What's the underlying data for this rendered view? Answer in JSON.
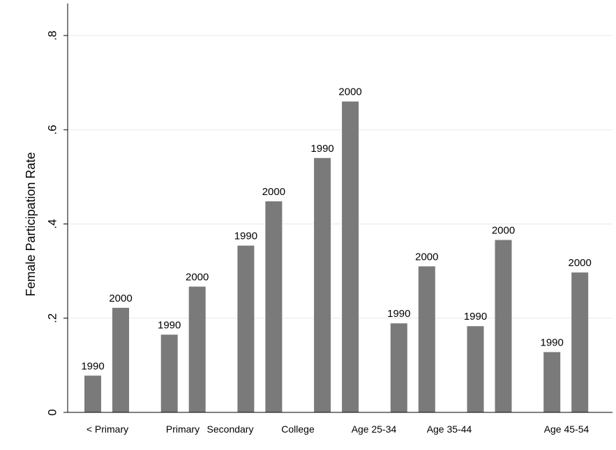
{
  "chart_data": {
    "type": "bar",
    "ylabel": "Female Participation Rate",
    "ylim": [
      0,
      0.8
    ],
    "yticks": [
      {
        "value": 0,
        "label": "0"
      },
      {
        "value": 0.2,
        "label": ".2"
      },
      {
        "value": 0.4,
        "label": ".4"
      },
      {
        "value": 0.6,
        "label": ".6"
      },
      {
        "value": 0.8,
        "label": ".8"
      }
    ],
    "grid": true,
    "colors": {
      "bar": "#7a7a7a",
      "grid": "#e4eaec",
      "axis": "#000000"
    },
    "groups": [
      {
        "category": "< Primary",
        "bars": [
          {
            "label": "1990",
            "value": 0.078
          },
          {
            "label": "2000",
            "value": 0.222
          }
        ]
      },
      {
        "category": "Primary",
        "bars": [
          {
            "label": "1990",
            "value": 0.165
          },
          {
            "label": "2000",
            "value": 0.267
          }
        ]
      },
      {
        "category": "Secondary",
        "bars": [
          {
            "label": "1990",
            "value": 0.354
          },
          {
            "label": "2000",
            "value": 0.448
          }
        ]
      },
      {
        "category": "College",
        "bars": [
          {
            "label": "1990",
            "value": 0.54
          },
          {
            "label": "2000",
            "value": 0.66
          }
        ]
      },
      {
        "category": "Age 25-34",
        "bars": [
          {
            "label": "1990",
            "value": 0.189
          },
          {
            "label": "2000",
            "value": 0.31
          }
        ]
      },
      {
        "category": "Age 35-44",
        "bars": [
          {
            "label": "1990",
            "value": 0.183
          },
          {
            "label": "2000",
            "value": 0.366
          }
        ]
      },
      {
        "category": "Age 45-54",
        "bars": [
          {
            "label": "1990",
            "value": 0.128
          },
          {
            "label": "2000",
            "value": 0.297
          }
        ]
      }
    ]
  }
}
